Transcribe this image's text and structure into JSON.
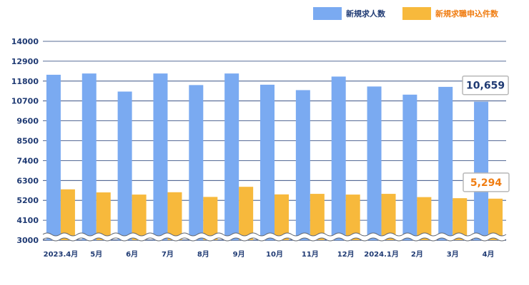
{
  "chart_data": {
    "type": "bar",
    "title": "",
    "xlabel": "",
    "ylabel": "",
    "ylim": [
      3000,
      14000
    ],
    "y_ticks": [
      3000,
      4100,
      5200,
      6300,
      7400,
      8500,
      9600,
      10700,
      11800,
      12900,
      14000
    ],
    "axis_break": true,
    "grid": true,
    "legend_position": "top-right",
    "categories": [
      "2023.4月",
      "5月",
      "6月",
      "7月",
      "8月",
      "9月",
      "10月",
      "11月",
      "12月",
      "2024.1月",
      "2月",
      "3月",
      "4月"
    ],
    "series": [
      {
        "name": "新規求人数",
        "color": "#7aaaf1",
        "values": [
          12150,
          12220,
          11220,
          12220,
          11580,
          12220,
          11600,
          11300,
          12050,
          11500,
          11050,
          11480,
          10659
        ]
      },
      {
        "name": "新規求職申込件数",
        "color": "#f7b93c",
        "values": [
          5810,
          5640,
          5520,
          5650,
          5390,
          5950,
          5530,
          5560,
          5520,
          5560,
          5380,
          5320,
          5294
        ]
      }
    ],
    "annotations": [
      {
        "series": 0,
        "index": 12,
        "text": "10,659",
        "color": "#1f3a73"
      },
      {
        "series": 1,
        "index": 12,
        "text": "5,294",
        "color": "#f07d12"
      }
    ]
  },
  "colors": {
    "axis_text": "#1f3a73",
    "grid": "#1f3a73",
    "break_wave_stroke": "#5f6570",
    "callout_border": "#b8b8b8"
  }
}
